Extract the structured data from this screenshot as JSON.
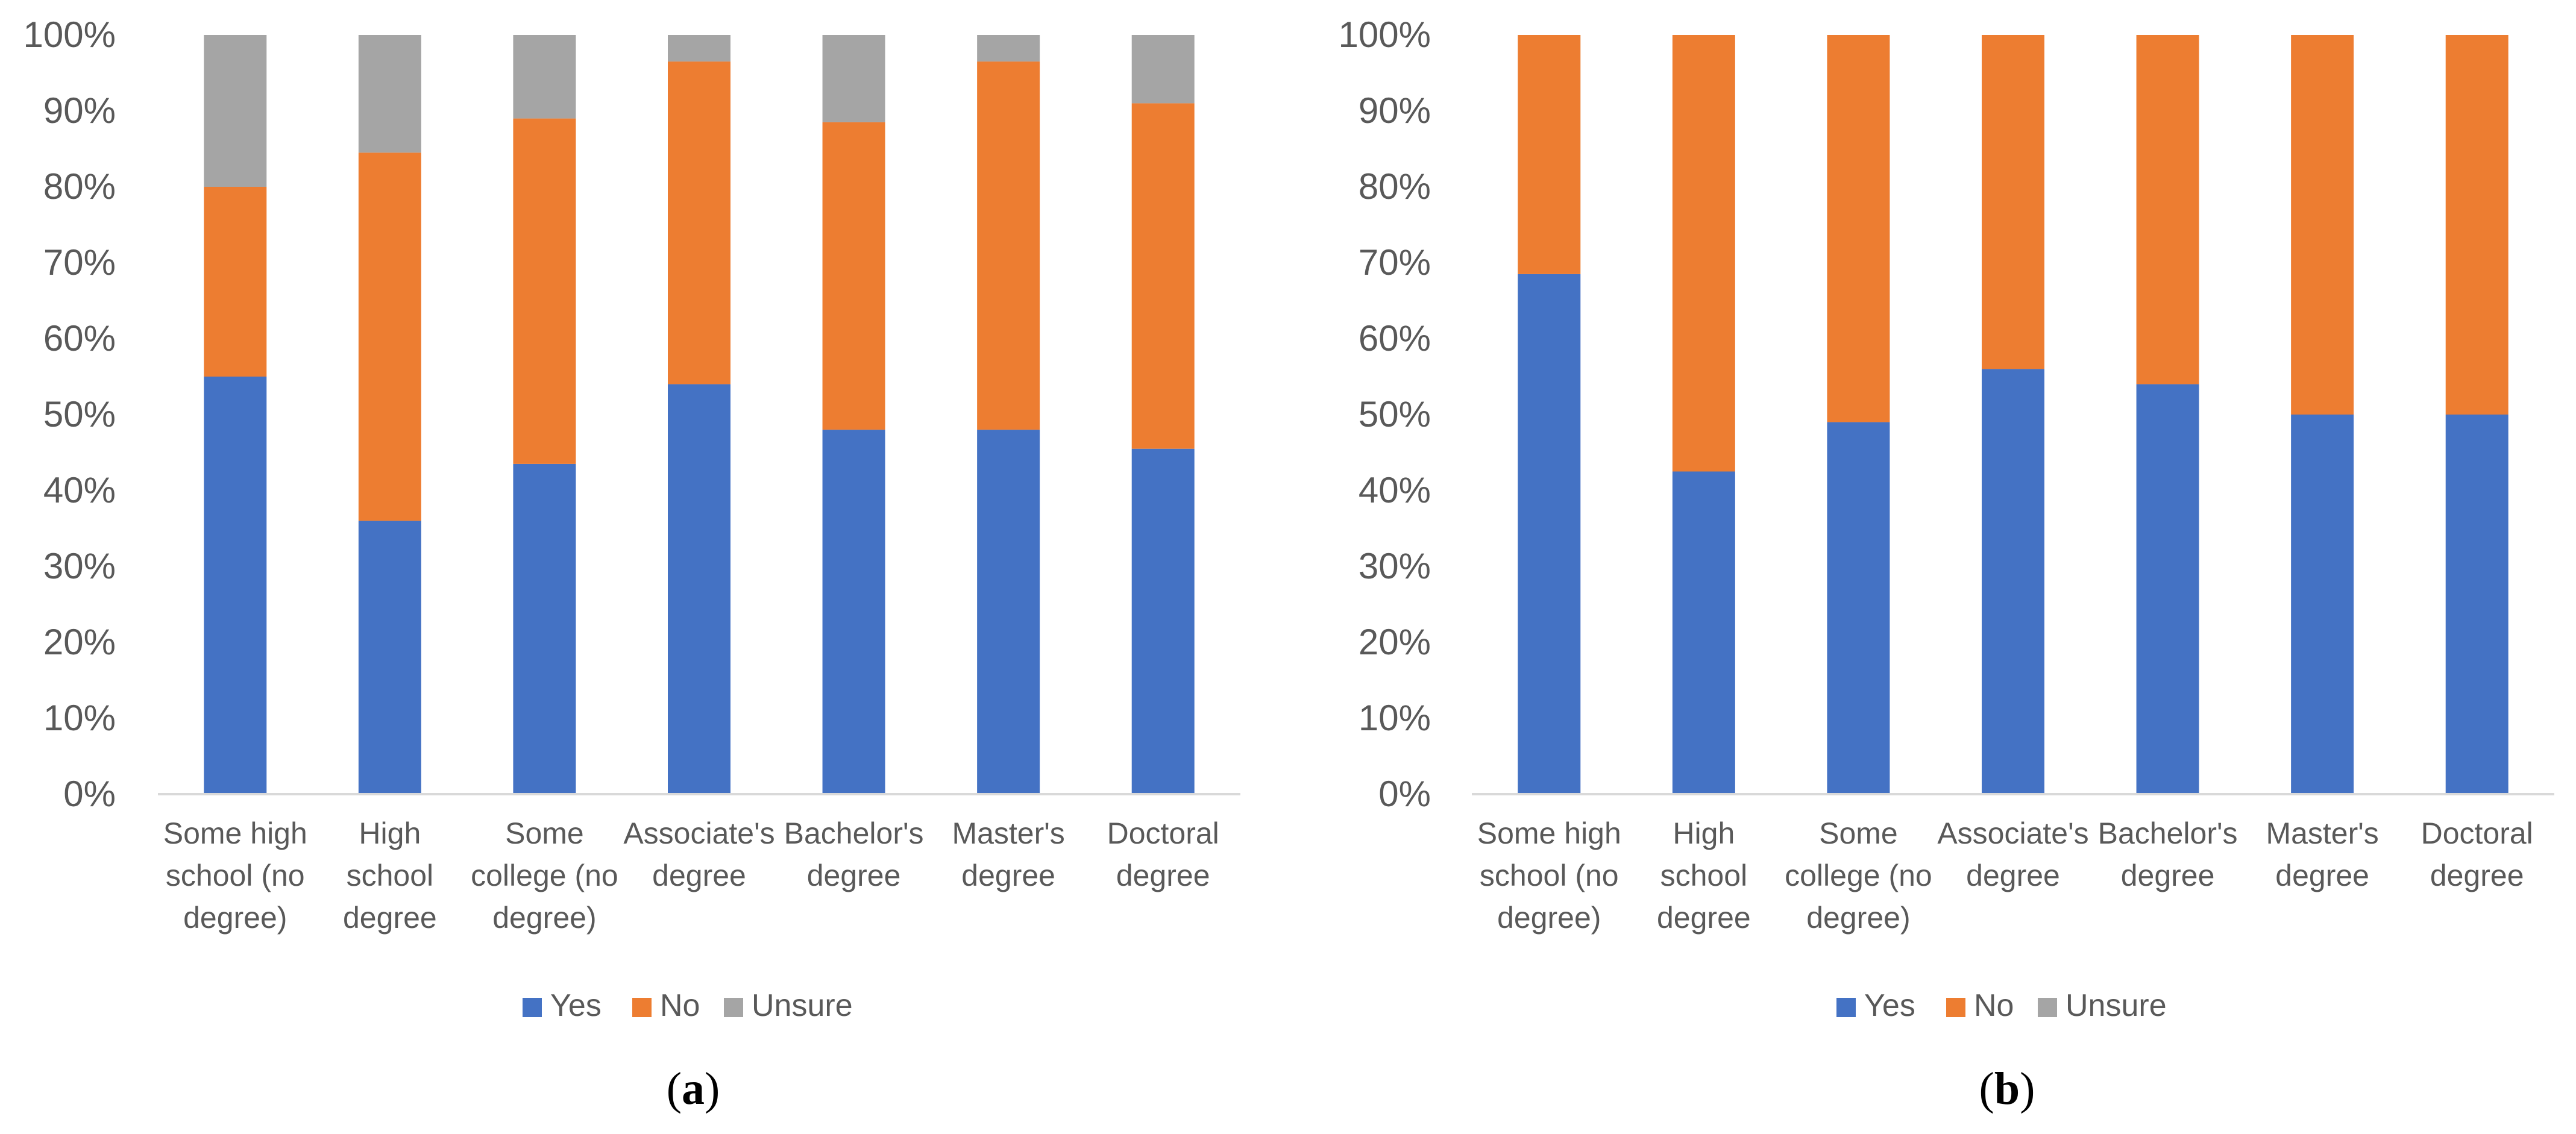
{
  "colors": {
    "Yes": "#4472C4",
    "No": "#ED7D31",
    "Unsure": "#A5A5A5",
    "axis": "#D9D9D9"
  },
  "chart_data": [
    {
      "type": "bar",
      "stacked": true,
      "panel_label": "a",
      "categories": [
        "Some high school (no degree)",
        "High school degree",
        "Some college (no degree)",
        "Associate's degree",
        "Bachelor's degree",
        "Master's degree",
        "Doctoral degree"
      ],
      "category_lines": [
        [
          "Some high",
          "school (no",
          "degree)"
        ],
        [
          "High",
          "school",
          "degree"
        ],
        [
          "Some",
          "college (no",
          "degree)"
        ],
        [
          "Associate's",
          "degree"
        ],
        [
          "Bachelor's",
          "degree"
        ],
        [
          "Master's",
          "degree"
        ],
        [
          "Doctoral",
          "degree"
        ]
      ],
      "series": [
        {
          "name": "Yes",
          "values": [
            55,
            36,
            43.5,
            54,
            48,
            48,
            45.5
          ]
        },
        {
          "name": "No",
          "values": [
            25,
            48.5,
            45.5,
            42.5,
            40.5,
            48.5,
            45.5
          ]
        },
        {
          "name": "Unsure",
          "values": [
            20,
            15.5,
            11,
            3.5,
            11.5,
            3.5,
            9
          ]
        }
      ],
      "ylim": [
        0,
        100
      ],
      "yticks": [
        "0%",
        "10%",
        "20%",
        "30%",
        "40%",
        "50%",
        "60%",
        "70%",
        "80%",
        "90%",
        "100%"
      ],
      "legend_position": "bottom",
      "grid": false
    },
    {
      "type": "bar",
      "stacked": true,
      "panel_label": "b",
      "categories": [
        "Some high school (no degree)",
        "High school degree",
        "Some college (no degree)",
        "Associate's degree",
        "Bachelor's degree",
        "Master's degree",
        "Doctoral degree"
      ],
      "category_lines": [
        [
          "Some high",
          "school (no",
          "degree)"
        ],
        [
          "High",
          "school",
          "degree"
        ],
        [
          "Some",
          "college (no",
          "degree)"
        ],
        [
          "Associate's",
          "degree"
        ],
        [
          "Bachelor's",
          "degree"
        ],
        [
          "Master's",
          "degree"
        ],
        [
          "Doctoral",
          "degree"
        ]
      ],
      "series": [
        {
          "name": "Yes",
          "values": [
            68.5,
            42.5,
            49,
            56,
            54,
            50,
            50
          ]
        },
        {
          "name": "No",
          "values": [
            31.5,
            57.5,
            51,
            44,
            46,
            50,
            50
          ]
        },
        {
          "name": "Unsure",
          "values": [
            0,
            0,
            0,
            0,
            0,
            0,
            0
          ]
        }
      ],
      "ylim": [
        0,
        100
      ],
      "yticks": [
        "0%",
        "10%",
        "20%",
        "30%",
        "40%",
        "50%",
        "60%",
        "70%",
        "80%",
        "90%",
        "100%"
      ],
      "legend_position": "bottom",
      "grid": false
    }
  ]
}
